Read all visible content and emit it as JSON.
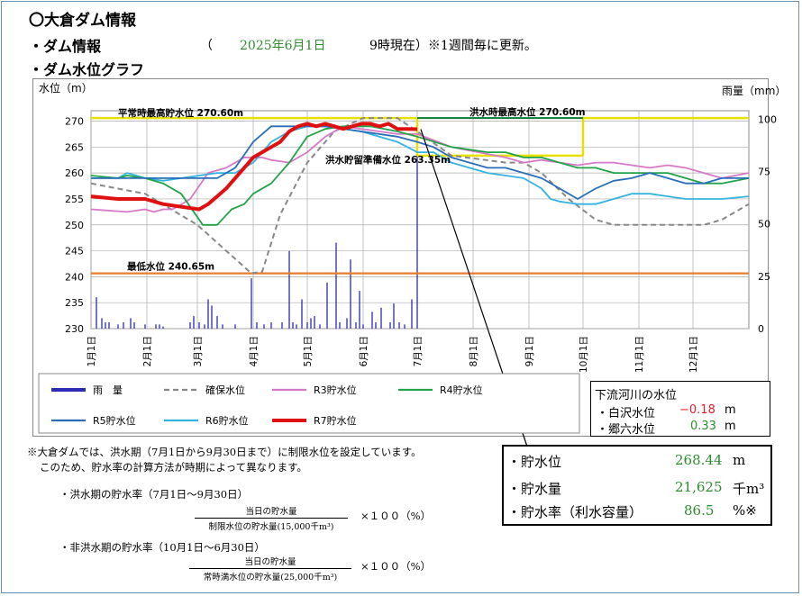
{
  "header": {
    "title": "〇大倉ダム情報",
    "dam_info_label": "・ダム情報",
    "paren_open": "（",
    "date": "2025年6月1日",
    "time_note": "9時現在）※1週間毎に更新。",
    "graph_label": "・ダム水位グラフ"
  },
  "chart_data": {
    "type": "line",
    "ylabel": "水位（m）",
    "y2label": "雨量（mm）",
    "ylim": [
      230,
      272
    ],
    "y2lim": [
      0,
      104
    ],
    "yticks": [
      "230",
      "235",
      "240",
      "245",
      "250",
      "255",
      "260",
      "265",
      "270"
    ],
    "y2ticks": [
      "0",
      "25",
      "50",
      "75",
      "100"
    ],
    "x_months": [
      "1月1日",
      "2月1日",
      "3月1日",
      "4月1日",
      "5月1日",
      "6月1日",
      "7月1日",
      "8月1日",
      "9月1日",
      "10月1日",
      "11月1日",
      "12月1日"
    ],
    "xlim": [
      0,
      365
    ],
    "grid": true,
    "reference_lines": [
      {
        "label": "平常時最高貯水位 270.60m",
        "value": 270.6
      },
      {
        "label": "洪水時最高水位 270.60m",
        "value": 270.6
      },
      {
        "label": "洪水貯留準備水位 263.35m",
        "value": 263.35
      },
      {
        "label": "最低水位 240.65m",
        "value": 240.65
      }
    ],
    "legend": [
      "雨　量",
      "確保水位",
      "R3貯水位",
      "R4貯水位",
      "R5貯水位",
      "R6貯水位",
      "R7貯水位"
    ],
    "colors": {
      "rain": "#2b2bb3",
      "secure": "#888888",
      "r3": "#d879c8",
      "r4": "#22a34a",
      "r5": "#2a6db8",
      "r6": "#33b4e0",
      "r7": "#e01010",
      "yellow": "#e8e000",
      "green_line": "#0c7a32",
      "orange": "#e87d2d"
    },
    "rain": [
      {
        "day": 3,
        "mm": 15
      },
      {
        "day": 6,
        "mm": 5
      },
      {
        "day": 8,
        "mm": 3
      },
      {
        "day": 10,
        "mm": 3
      },
      {
        "day": 15,
        "mm": 2
      },
      {
        "day": 18,
        "mm": 3
      },
      {
        "day": 22,
        "mm": 5
      },
      {
        "day": 24,
        "mm": 3
      },
      {
        "day": 30,
        "mm": 2
      },
      {
        "day": 36,
        "mm": 2
      },
      {
        "day": 38,
        "mm": 2
      },
      {
        "day": 40,
        "mm": 1
      },
      {
        "day": 55,
        "mm": 3
      },
      {
        "day": 57,
        "mm": 6
      },
      {
        "day": 60,
        "mm": 3
      },
      {
        "day": 63,
        "mm": 2
      },
      {
        "day": 65,
        "mm": 14
      },
      {
        "day": 67,
        "mm": 11
      },
      {
        "day": 70,
        "mm": 6
      },
      {
        "day": 73,
        "mm": 2
      },
      {
        "day": 80,
        "mm": 2
      },
      {
        "day": 89,
        "mm": 24
      },
      {
        "day": 92,
        "mm": 3
      },
      {
        "day": 96,
        "mm": 2
      },
      {
        "day": 100,
        "mm": 3
      },
      {
        "day": 106,
        "mm": 3
      },
      {
        "day": 110,
        "mm": 37
      },
      {
        "day": 112,
        "mm": 3
      },
      {
        "day": 114,
        "mm": 2
      },
      {
        "day": 117,
        "mm": 14
      },
      {
        "day": 120,
        "mm": 3
      },
      {
        "day": 122,
        "mm": 5
      },
      {
        "day": 124,
        "mm": 6
      },
      {
        "day": 127,
        "mm": 2
      },
      {
        "day": 131,
        "mm": 22
      },
      {
        "day": 136,
        "mm": 41
      },
      {
        "day": 138,
        "mm": 3
      },
      {
        "day": 142,
        "mm": 5
      },
      {
        "day": 144,
        "mm": 33
      },
      {
        "day": 147,
        "mm": 3
      },
      {
        "day": 149,
        "mm": 18
      },
      {
        "day": 151,
        "mm": 2
      },
      {
        "day": 156,
        "mm": 8
      },
      {
        "day": 158,
        "mm": 3
      },
      {
        "day": 161,
        "mm": 10
      },
      {
        "day": 166,
        "mm": 3
      },
      {
        "day": 168,
        "mm": 12
      },
      {
        "day": 171,
        "mm": 3
      },
      {
        "day": 174,
        "mm": 2
      },
      {
        "day": 178,
        "mm": 14
      },
      {
        "day": 181,
        "mm": 100
      }
    ],
    "series": {
      "secure": [
        [
          0,
          258
        ],
        [
          30,
          256
        ],
        [
          59,
          250
        ],
        [
          75,
          245
        ],
        [
          89,
          240.65
        ],
        [
          95,
          241
        ],
        [
          105,
          252
        ],
        [
          120,
          262
        ],
        [
          135,
          268
        ],
        [
          151,
          270.6
        ],
        [
          170,
          270.6
        ],
        [
          181,
          268
        ],
        [
          200,
          263.35
        ],
        [
          230,
          262
        ],
        [
          240,
          262
        ],
        [
          250,
          260
        ],
        [
          265,
          255
        ],
        [
          280,
          251
        ],
        [
          290,
          250
        ],
        [
          300,
          250
        ],
        [
          320,
          250
        ],
        [
          340,
          250
        ],
        [
          350,
          251
        ],
        [
          365,
          254
        ]
      ],
      "r3": [
        [
          0,
          253
        ],
        [
          20,
          252.5
        ],
        [
          30,
          253
        ],
        [
          35,
          252.5
        ],
        [
          40,
          253
        ],
        [
          45,
          253
        ],
        [
          48,
          253.5
        ],
        [
          55,
          255
        ],
        [
          65,
          260
        ],
        [
          75,
          261
        ],
        [
          85,
          263
        ],
        [
          95,
          263
        ],
        [
          100,
          262.5
        ],
        [
          110,
          262
        ],
        [
          120,
          264
        ],
        [
          130,
          267
        ],
        [
          140,
          269
        ],
        [
          150,
          268.5
        ],
        [
          160,
          268
        ],
        [
          170,
          267.5
        ],
        [
          181,
          267.5
        ],
        [
          200,
          265
        ],
        [
          215,
          264
        ],
        [
          230,
          263
        ],
        [
          240,
          262
        ],
        [
          250,
          262.5
        ],
        [
          260,
          262
        ],
        [
          270,
          261.5
        ],
        [
          280,
          262
        ],
        [
          290,
          262
        ],
        [
          300,
          261.5
        ],
        [
          310,
          261
        ],
        [
          320,
          261.5
        ],
        [
          330,
          261
        ],
        [
          340,
          260
        ],
        [
          350,
          259
        ],
        [
          365,
          260
        ]
      ],
      "r4": [
        [
          0,
          259.5
        ],
        [
          15,
          259
        ],
        [
          20,
          259.5
        ],
        [
          30,
          259
        ],
        [
          40,
          258
        ],
        [
          50,
          256
        ],
        [
          58,
          252
        ],
        [
          62,
          250
        ],
        [
          70,
          250
        ],
        [
          78,
          253
        ],
        [
          85,
          254
        ],
        [
          90,
          256
        ],
        [
          100,
          258
        ],
        [
          110,
          262
        ],
        [
          120,
          267
        ],
        [
          130,
          268.5
        ],
        [
          140,
          269
        ],
        [
          155,
          269
        ],
        [
          170,
          268
        ],
        [
          181,
          267
        ],
        [
          200,
          265
        ],
        [
          220,
          264
        ],
        [
          230,
          264
        ],
        [
          240,
          263
        ],
        [
          250,
          263
        ],
        [
          260,
          262
        ],
        [
          270,
          261
        ],
        [
          280,
          261
        ],
        [
          290,
          260
        ],
        [
          300,
          260
        ],
        [
          310,
          260
        ],
        [
          320,
          260
        ],
        [
          330,
          259
        ],
        [
          340,
          258
        ],
        [
          350,
          258
        ],
        [
          365,
          259
        ]
      ],
      "r5": [
        [
          0,
          259
        ],
        [
          20,
          259
        ],
        [
          40,
          259
        ],
        [
          60,
          259
        ],
        [
          70,
          259
        ],
        [
          80,
          261
        ],
        [
          90,
          266
        ],
        [
          100,
          269
        ],
        [
          110,
          269
        ],
        [
          120,
          269
        ],
        [
          130,
          269
        ],
        [
          150,
          268
        ],
        [
          170,
          267
        ],
        [
          181,
          266
        ],
        [
          190,
          265
        ],
        [
          200,
          263
        ],
        [
          210,
          262
        ],
        [
          220,
          261
        ],
        [
          230,
          261
        ],
        [
          240,
          260
        ],
        [
          250,
          259
        ],
        [
          260,
          257
        ],
        [
          270,
          255
        ],
        [
          280,
          257
        ],
        [
          290,
          258.5
        ],
        [
          300,
          259
        ],
        [
          310,
          260
        ],
        [
          320,
          259
        ],
        [
          330,
          258
        ],
        [
          340,
          258
        ],
        [
          350,
          259
        ],
        [
          365,
          259
        ]
      ],
      "r6": [
        [
          0,
          259
        ],
        [
          15,
          259
        ],
        [
          20,
          260
        ],
        [
          30,
          259
        ],
        [
          40,
          258.5
        ],
        [
          50,
          259
        ],
        [
          60,
          259.5
        ],
        [
          70,
          260
        ],
        [
          80,
          260
        ],
        [
          90,
          262
        ],
        [
          100,
          266
        ],
        [
          110,
          268
        ],
        [
          120,
          269
        ],
        [
          130,
          269
        ],
        [
          150,
          268
        ],
        [
          170,
          266
        ],
        [
          181,
          264
        ],
        [
          190,
          264
        ],
        [
          200,
          262
        ],
        [
          210,
          261
        ],
        [
          220,
          260
        ],
        [
          230,
          259.5
        ],
        [
          240,
          259
        ],
        [
          250,
          257
        ],
        [
          255,
          255
        ],
        [
          260,
          254.5
        ],
        [
          270,
          254
        ],
        [
          280,
          254
        ],
        [
          290,
          255
        ],
        [
          300,
          256
        ],
        [
          310,
          256
        ],
        [
          320,
          255.5
        ],
        [
          330,
          255
        ],
        [
          340,
          255
        ],
        [
          350,
          255
        ],
        [
          365,
          255.5
        ]
      ],
      "r7": [
        [
          0,
          255.5
        ],
        [
          15,
          255
        ],
        [
          30,
          255
        ],
        [
          40,
          254
        ],
        [
          50,
          253.5
        ],
        [
          60,
          253
        ],
        [
          65,
          254
        ],
        [
          70,
          255.5
        ],
        [
          75,
          257
        ],
        [
          80,
          259
        ],
        [
          85,
          261
        ],
        [
          90,
          263
        ],
        [
          95,
          264
        ],
        [
          100,
          265
        ],
        [
          105,
          266
        ],
        [
          110,
          268
        ],
        [
          115,
          269
        ],
        [
          120,
          269.5
        ],
        [
          125,
          269
        ],
        [
          130,
          269.5
        ],
        [
          135,
          269
        ],
        [
          140,
          268.5
        ],
        [
          145,
          269
        ],
        [
          150,
          269.5
        ],
        [
          155,
          269.5
        ],
        [
          160,
          269
        ],
        [
          165,
          269.5
        ],
        [
          170,
          268.5
        ],
        [
          175,
          268.5
        ],
        [
          181,
          268.44
        ]
      ]
    }
  },
  "river": {
    "title": "下流河川の水位",
    "rows": [
      {
        "name": "・白沢水位",
        "value": "−0.18",
        "unit": "m"
      },
      {
        "name": "・郷六水位",
        "value": "0.33",
        "unit": "m"
      }
    ]
  },
  "stats": [
    {
      "label": "・貯水位",
      "value": "268.44",
      "unit": "m"
    },
    {
      "label": "・貯水量",
      "value": "21,625",
      "unit": "千m³"
    },
    {
      "label": "・貯水率（利水容量）",
      "value": "86.5",
      "unit": "%※"
    }
  ],
  "notes": {
    "line1": "※大倉ダムでは、洪水期（7月1日から9月30日まで）に制限水位を設定しています。",
    "line2": "このため、貯水率の計算方法が時期によって異なります。",
    "flood_title": "・洪水期の貯水率（7月1日～9月30日）",
    "flood_num": "当日の貯水量",
    "flood_den": "制限水位の貯水量(15,000千m³)",
    "flood_mult": "×１００（%）",
    "nonflood_title": "・非洪水期の貯水率（10月1日～6月30日）",
    "nonflood_num": "当日の貯水量",
    "nonflood_den": "常時満水位の貯水量(25,000千m³)",
    "nonflood_mult": "×１００（%）"
  }
}
